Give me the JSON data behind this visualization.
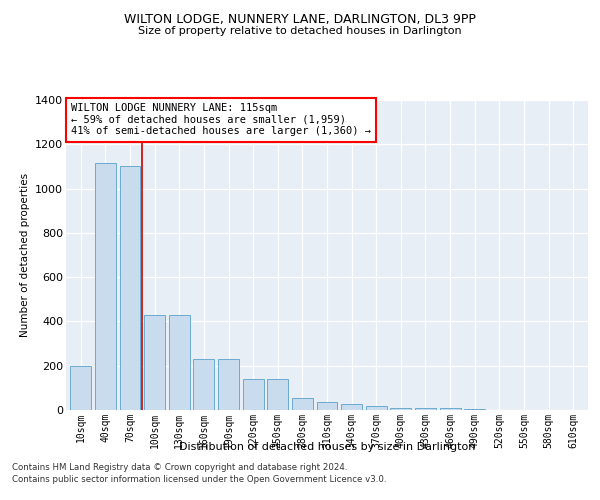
{
  "title": "WILTON LODGE, NUNNERY LANE, DARLINGTON, DL3 9PP",
  "subtitle": "Size of property relative to detached houses in Darlington",
  "xlabel": "Distribution of detached houses by size in Darlington",
  "ylabel": "Number of detached properties",
  "bar_color": "#c8dced",
  "bar_edge_color": "#6aabcf",
  "background_color": "#e8eef5",
  "grid_color": "#ffffff",
  "categories": [
    "10sqm",
    "40sqm",
    "70sqm",
    "100sqm",
    "130sqm",
    "160sqm",
    "190sqm",
    "220sqm",
    "250sqm",
    "280sqm",
    "310sqm",
    "340sqm",
    "370sqm",
    "400sqm",
    "430sqm",
    "460sqm",
    "490sqm",
    "520sqm",
    "550sqm",
    "580sqm",
    "610sqm"
  ],
  "values": [
    200,
    1115,
    1100,
    430,
    430,
    230,
    230,
    140,
    140,
    55,
    35,
    25,
    20,
    10,
    10,
    10,
    5,
    0,
    0,
    0,
    0
  ],
  "ylim": [
    0,
    1400
  ],
  "yticks": [
    0,
    200,
    400,
    600,
    800,
    1000,
    1200,
    1400
  ],
  "red_line_x": 2.5,
  "annotation_text": "WILTON LODGE NUNNERY LANE: 115sqm\n← 59% of detached houses are smaller (1,959)\n41% of semi-detached houses are larger (1,360) →",
  "red_line_color": "#cc0000",
  "footer1": "Contains HM Land Registry data © Crown copyright and database right 2024.",
  "footer2": "Contains public sector information licensed under the Open Government Licence v3.0."
}
